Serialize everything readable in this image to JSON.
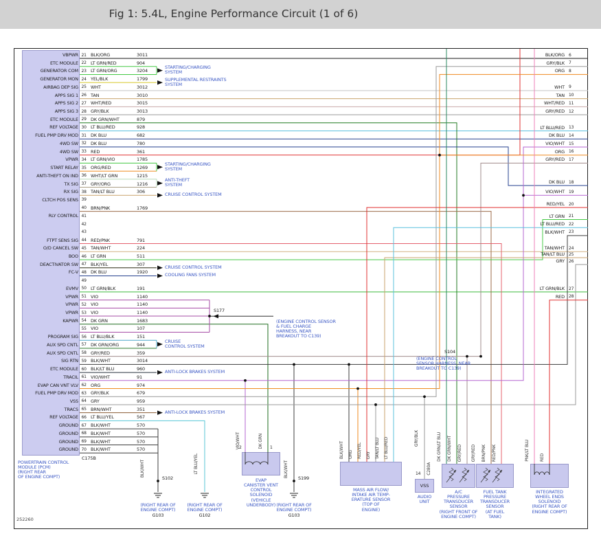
{
  "title": "Fig 1: 5.4L, Engine Performance Circuit (1 of 6)",
  "part_number": "252260",
  "pcm": {
    "name_lines": [
      "POWERTRAIN CONTROL",
      "MODULE (PCM)",
      "(RIGHT REAR",
      "OF ENGINE COMPT)"
    ],
    "connector": "C175B"
  },
  "rows": [
    {
      "pin": "21",
      "label": "VBPWR",
      "color": "BLK/ORG",
      "circuit": "3011"
    },
    {
      "pin": "22",
      "label": "ETC MODULE",
      "color": "LT GRN/RED",
      "circuit": "904"
    },
    {
      "pin": "23",
      "label": "GENERATOR COM",
      "color": "LT GRN/ORG",
      "circuit": "3204"
    },
    {
      "pin": "24",
      "label": "GENERATOR MON",
      "color": "YEL/BLK",
      "circuit": "1799"
    },
    {
      "pin": "25",
      "label": "AIRBAG DEP SIG",
      "color": "WHT",
      "circuit": "3012"
    },
    {
      "pin": "26",
      "label": "APPS SIG 1",
      "color": "TAN",
      "circuit": "3010"
    },
    {
      "pin": "27",
      "label": "APPS SIG 2",
      "color": "WHT/RED",
      "circuit": "3015"
    },
    {
      "pin": "28",
      "label": "APPS SIG 3",
      "color": "GRY/BLK",
      "circuit": "3013"
    },
    {
      "pin": "29",
      "label": "ETC MODULE",
      "color": "DK GRN/WHT",
      "circuit": "879"
    },
    {
      "pin": "30",
      "label": "REF VOLTAGE",
      "color": "LT BLU/RED",
      "circuit": "928"
    },
    {
      "pin": "31",
      "label": "FUEL PMP DRV MOD",
      "color": "DK BLU",
      "circuit": "682"
    },
    {
      "pin": "32",
      "label": "4WD SW",
      "color": "DK BLU",
      "circuit": "780"
    },
    {
      "pin": "33",
      "label": "4WD SW",
      "color": "RED",
      "circuit": "361"
    },
    {
      "pin": "34",
      "label": "VPWR",
      "color": "LT GRN/VIO",
      "circuit": "1785"
    },
    {
      "pin": "35",
      "label": "START RELAY",
      "color": "ORG/RED",
      "circuit": "1269"
    },
    {
      "pin": "36",
      "label": "ANTI-THEFT ON IND",
      "color": "WHT/LT GRN",
      "circuit": "1215"
    },
    {
      "pin": "37",
      "label": "TX SIG",
      "color": "GRY/ORG",
      "circuit": "1216"
    },
    {
      "pin": "38",
      "label": "RX SIG",
      "color": "TAN/LT BLU",
      "circuit": "306"
    },
    {
      "pin": "39",
      "label": "CLTCH POS SENS",
      "color": "",
      "circuit": ""
    },
    {
      "pin": "40",
      "label": "",
      "color": "BRN/PNK",
      "circuit": "1769"
    },
    {
      "pin": "41",
      "label": "RLY CONTROL",
      "color": "",
      "circuit": ""
    },
    {
      "pin": "42",
      "label": "",
      "color": "",
      "circuit": ""
    },
    {
      "pin": "43",
      "label": "",
      "color": "",
      "circuit": ""
    },
    {
      "pin": "44",
      "label": "FTPT SENS SIG",
      "color": "RED/PNK",
      "circuit": "791"
    },
    {
      "pin": "45",
      "label": "O/D CANCEL SW",
      "color": "TAN/WHT",
      "circuit": "224"
    },
    {
      "pin": "46",
      "label": "BOO",
      "color": "LT GRN",
      "circuit": "511"
    },
    {
      "pin": "47",
      "label": "DEACTIVATOR SW",
      "color": "BLK/YEL",
      "circuit": "307"
    },
    {
      "pin": "48",
      "label": "FC-V",
      "color": "DK BLU",
      "circuit": "1920"
    },
    {
      "pin": "49",
      "label": "",
      "color": "",
      "circuit": ""
    },
    {
      "pin": "50",
      "label": "EVMV",
      "color": "LT GRN/BLK",
      "circuit": "191"
    },
    {
      "pin": "51",
      "label": "VPWR",
      "color": "VIO",
      "circuit": "1140"
    },
    {
      "pin": "52",
      "label": "VPWR",
      "color": "VIO",
      "circuit": "1140"
    },
    {
      "pin": "53",
      "label": "VPWR",
      "color": "VIO",
      "circuit": "1140"
    },
    {
      "pin": "54",
      "label": "KAPWR",
      "color": "DK GRN",
      "circuit": "1683"
    },
    {
      "pin": "55",
      "label": "",
      "color": "VIO",
      "circuit": "107"
    },
    {
      "pin": "56",
      "label": "PROGRAM SIG",
      "color": "LT BLU/BLK",
      "circuit": "151"
    },
    {
      "pin": "57",
      "label": "AUX SPD CNTL",
      "color": "DK GRN/ORG",
      "circuit": "944"
    },
    {
      "pin": "58",
      "label": "AUX SPD CNTL",
      "color": "GRY/RED",
      "circuit": "359"
    },
    {
      "pin": "59",
      "label": "SIG RTN",
      "color": "BLK/WHT",
      "circuit": "3014"
    },
    {
      "pin": "60",
      "label": "ETC MODULE",
      "color": "BLK/LT BLU",
      "circuit": "960"
    },
    {
      "pin": "61",
      "label": "TRACIL",
      "color": "VIO/WHT",
      "circuit": "91"
    },
    {
      "pin": "62",
      "label": "EVAP CAN VNT VLV",
      "color": "ORG",
      "circuit": "974"
    },
    {
      "pin": "63",
      "label": "FUEL PMP DRV MOD",
      "color": "GRY/BLK",
      "circuit": "679"
    },
    {
      "pin": "64",
      "label": "VSS",
      "color": "GRY",
      "circuit": "959"
    },
    {
      "pin": "65",
      "label": "TRACS",
      "color": "BRN/WHT",
      "circuit": "351"
    },
    {
      "pin": "66",
      "label": "REF VOLTAGE",
      "color": "LT BLU/YEL",
      "circuit": "567"
    },
    {
      "pin": "67",
      "label": "GROUND",
      "color": "BLK/WHT",
      "circuit": "570"
    },
    {
      "pin": "68",
      "label": "GROUND",
      "color": "BLK/WHT",
      "circuit": "570"
    },
    {
      "pin": "69",
      "label": "GROUND",
      "color": "BLK/WHT",
      "circuit": "570"
    },
    {
      "pin": "70",
      "label": "GROUND",
      "color": "BLK/WHT",
      "circuit": "570"
    }
  ],
  "right_exits": [
    {
      "pin": "6",
      "color": "BLK/ORG"
    },
    {
      "pin": "7",
      "color": "GRY/BLK"
    },
    {
      "pin": "8",
      "color": "ORG"
    },
    {
      "pin": "9",
      "color": "WHT"
    },
    {
      "pin": "10",
      "color": "TAN"
    },
    {
      "pin": "11",
      "color": "WHT/RED"
    },
    {
      "pin": "12",
      "color": "GRY/RED"
    },
    {
      "pin": "13",
      "color": "LT BLU/RED"
    },
    {
      "pin": "14",
      "color": "DK BLU"
    },
    {
      "pin": "15",
      "color": "VIO/WHT"
    },
    {
      "pin": "16",
      "color": "ORG"
    },
    {
      "pin": "17",
      "color": "GRY/RED"
    },
    {
      "pin": "18",
      "color": "DK BLU"
    },
    {
      "pin": "19",
      "color": "VIO/WHT"
    },
    {
      "pin": "20",
      "color": "RED/YEL"
    },
    {
      "pin": "21",
      "color": "LT GRN"
    },
    {
      "pin": "22",
      "color": "LT BLU/RED"
    },
    {
      "pin": "23",
      "color": "BLK/WHT"
    },
    {
      "pin": "24",
      "color": "TAN/WHT"
    },
    {
      "pin": "25",
      "color": "TAN/LT BLU"
    },
    {
      "pin": "26",
      "color": "GRY"
    },
    {
      "pin": "27",
      "color": "LT GRN/BLK"
    },
    {
      "pin": "28",
      "color": "RED"
    }
  ],
  "annotations": [
    {
      "lines": [
        "STARTING/CHARGING",
        "SYSTEM"
      ],
      "pins": [
        22,
        23
      ]
    },
    {
      "lines": [
        "SUPPLEMENTAL RESTRAINTS",
        "SYSTEM"
      ],
      "pins": [
        24
      ]
    },
    {
      "lines": [
        "STARTING/CHARGING",
        "SYSTEM"
      ],
      "pins": [
        34,
        35
      ]
    },
    {
      "lines": [
        "ANTI-THEFT",
        "SYSTEM"
      ],
      "pins": [
        36,
        37
      ]
    },
    {
      "lines": [
        "CRUISE CONTROL SYSTEM"
      ],
      "pins": [
        38
      ]
    },
    {
      "lines": [
        "CRUISE CONTROL SYSTEM"
      ],
      "pins": [
        47
      ]
    },
    {
      "lines": [
        "COOLING FANS SYSTEM"
      ],
      "pins": [
        48
      ]
    },
    {
      "lines": [
        "CRUISE",
        "CONTROL SYSTEM"
      ],
      "pins": [
        56,
        57
      ]
    },
    {
      "lines": [
        "ANTI-LOCK BRAKES SYSTEM"
      ],
      "pins": [
        60
      ]
    },
    {
      "lines": [
        "ANTI-LOCK BRAKES SYSTEM"
      ],
      "pins": [
        65
      ]
    }
  ],
  "components": [
    {
      "box_label": "",
      "lines": [
        "EVAP",
        "CANISTER VENT",
        "CONTROL",
        "SOLENOID",
        "(VEHICLE",
        "UNDERBODY)"
      ]
    },
    {
      "box_label": "",
      "lines": [
        "MASS AIR FLOW/",
        "INTAKE AIR TEMP-",
        "ERATURE SENSOR",
        "(TOP OF",
        "ENGINE)"
      ]
    },
    {
      "box_label": "VSS",
      "lines": [
        "AUDIO",
        "UNIT"
      ]
    },
    {
      "box_label": "",
      "lines": [
        "A/C",
        "PRESSURE",
        "TRANSDUCER",
        "SENSOR",
        "(RIGHT FRONT OF",
        "ENGINE COMPT)"
      ]
    },
    {
      "box_label": "",
      "lines": [
        "FUEL TANK",
        "PRESSURE",
        "TRANSDUCER",
        "SENSOR",
        "(AT FUEL",
        "TANK)"
      ]
    },
    {
      "box_label": "",
      "lines": [
        "INTEGRATED",
        "WHEEL ENDS",
        "SOLENOID",
        "(RIGHT REAR OF",
        "ENGINE COMPT)"
      ]
    }
  ],
  "grounds": [
    {
      "id": "G103",
      "lines": [
        "(RIGHT REAR OF",
        "ENGINE COMPT)"
      ]
    },
    {
      "id": "G102",
      "lines": [
        "(RIGHT REAR OF",
        "ENGINE COMPT)"
      ]
    },
    {
      "id": "G103",
      "lines": [
        "(RIGHT REAR OF",
        "ENGINE COMPT)"
      ]
    }
  ],
  "splices": {
    "s102": "S102",
    "s199": "S199",
    "s177": "S177",
    "s104": "S104"
  },
  "connectors": {
    "c175b": "C175B",
    "c280a": "C280A"
  },
  "notes": {
    "s177": [
      "(ENGINE CONTROL SENSOR",
      "& FUEL CHARGE",
      "HARNESS, NEAR",
      "BREAKOUT TO C139)"
    ],
    "s104": [
      "(ENGINE CONTROL",
      "SENSOR HARNESS, NEAR",
      "BREAKOUT TO C139)"
    ]
  },
  "vertical_labels": [
    "BLK/WHT",
    "LT BLU/YEL",
    "VIO/WHT",
    "DK GRN",
    "BLK/WHT",
    "BLK/WHT",
    "ORG",
    "RED/YEL",
    "GRY",
    "TAN/LT BLU",
    "LT BLU/RED",
    "GRY/BLK",
    "DK GRN/LT BLU",
    "DK GRN/WHT",
    "GRY/RED",
    "GRY/RED",
    "BRN/PNK",
    "RED/PNK",
    "PNK/LT BLU",
    "RED"
  ],
  "misc": {
    "vss_pin": "14",
    "evap_pin_left": "2",
    "evap_pin_right": "1"
  },
  "colors": {
    "BLK/ORG": "#1a1a1a",
    "LT GRN/RED": "#44c944",
    "LT GRN/ORG": "#44c944",
    "YEL/BLK": "#d6c62a",
    "WHT": "#c4c4c4",
    "TAN": "#c9a26b",
    "WHT/RED": "#c9aaaa",
    "GRY/BLK": "#9a9a9a",
    "DK GRN/WHT": "#217a21",
    "LT BLU/RED": "#5bc0de",
    "DK BLU": "#26418f",
    "RED": "#e03131",
    "LT GRN/VIO": "#44c944",
    "ORG/RED": "#ef8a1f",
    "WHT/LT GRN": "#b9d9b9",
    "GRY/ORG": "#ab9f85",
    "TAN/LT BLU": "#c9a26b",
    "BRN/PNK": "#9c6b4a",
    "RED/PNK": "#e4606d",
    "TAN/WHT": "#d4b486",
    "BLK/YEL": "#2a2a12",
    "LT GRN/BLK": "#3dbb3d",
    "VIO": "#a64ca6",
    "DK GRN": "#1c6b1c",
    "LT BLU/BLK": "#4aa7c9",
    "DK GRN/ORG": "#2d7a2d",
    "GRY/RED": "#a18c8c",
    "BLK/WHT": "#3c3c3c",
    "BLK/LT BLU": "#27323c",
    "VIO/WHT": "#b565d1",
    "ORG": "#ef8a1f",
    "GRY": "#9a9a9a",
    "BRN/WHT": "#8a5a33",
    "LT BLU/YEL": "#57c6d6",
    "RED/YEL": "#e03131",
    "PNK/LT BLU": "#ee7fb8",
    "DK GRN/LT BLU": "#2b8a62",
    "LT GRN": "#44c944"
  }
}
